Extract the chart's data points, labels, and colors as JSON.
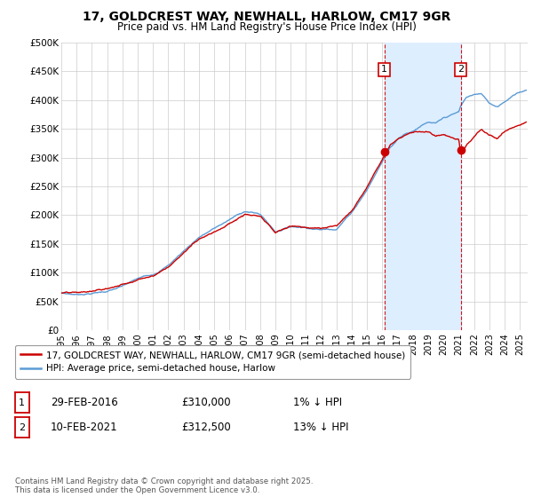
{
  "title": "17, GOLDCREST WAY, NEWHALL, HARLOW, CM17 9GR",
  "subtitle": "Price paid vs. HM Land Registry's House Price Index (HPI)",
  "ylim": [
    0,
    500000
  ],
  "yticks": [
    0,
    50000,
    100000,
    150000,
    200000,
    250000,
    300000,
    350000,
    400000,
    450000,
    500000
  ],
  "ytick_labels": [
    "£0",
    "£50K",
    "£100K",
    "£150K",
    "£200K",
    "£250K",
    "£300K",
    "£350K",
    "£400K",
    "£450K",
    "£500K"
  ],
  "xlim_start": 1995.0,
  "xlim_end": 2025.5,
  "xticks": [
    1995,
    1996,
    1997,
    1998,
    1999,
    2000,
    2001,
    2002,
    2003,
    2004,
    2005,
    2006,
    2007,
    2008,
    2009,
    2010,
    2011,
    2012,
    2013,
    2014,
    2015,
    2016,
    2017,
    2018,
    2019,
    2020,
    2021,
    2022,
    2023,
    2024,
    2025
  ],
  "hpi_color": "#5b9bd5",
  "price_color": "#cc0000",
  "shade_color": "#ddeeff",
  "purchase1_x": 2016.12,
  "purchase1_y": 310000,
  "purchase2_x": 2021.12,
  "purchase2_y": 312500,
  "vline_color": "#cc0000",
  "legend_price_label": "17, GOLDCREST WAY, NEWHALL, HARLOW, CM17 9GR (semi-detached house)",
  "legend_hpi_label": "HPI: Average price, semi-detached house, Harlow",
  "table_row1": [
    "1",
    "29-FEB-2016",
    "£310,000",
    "1% ↓ HPI"
  ],
  "table_row2": [
    "2",
    "10-FEB-2021",
    "£312,500",
    "13% ↓ HPI"
  ],
  "footer": "Contains HM Land Registry data © Crown copyright and database right 2025.\nThis data is licensed under the Open Government Licence v3.0.",
  "background_color": "#ffffff",
  "grid_color": "#cccccc"
}
